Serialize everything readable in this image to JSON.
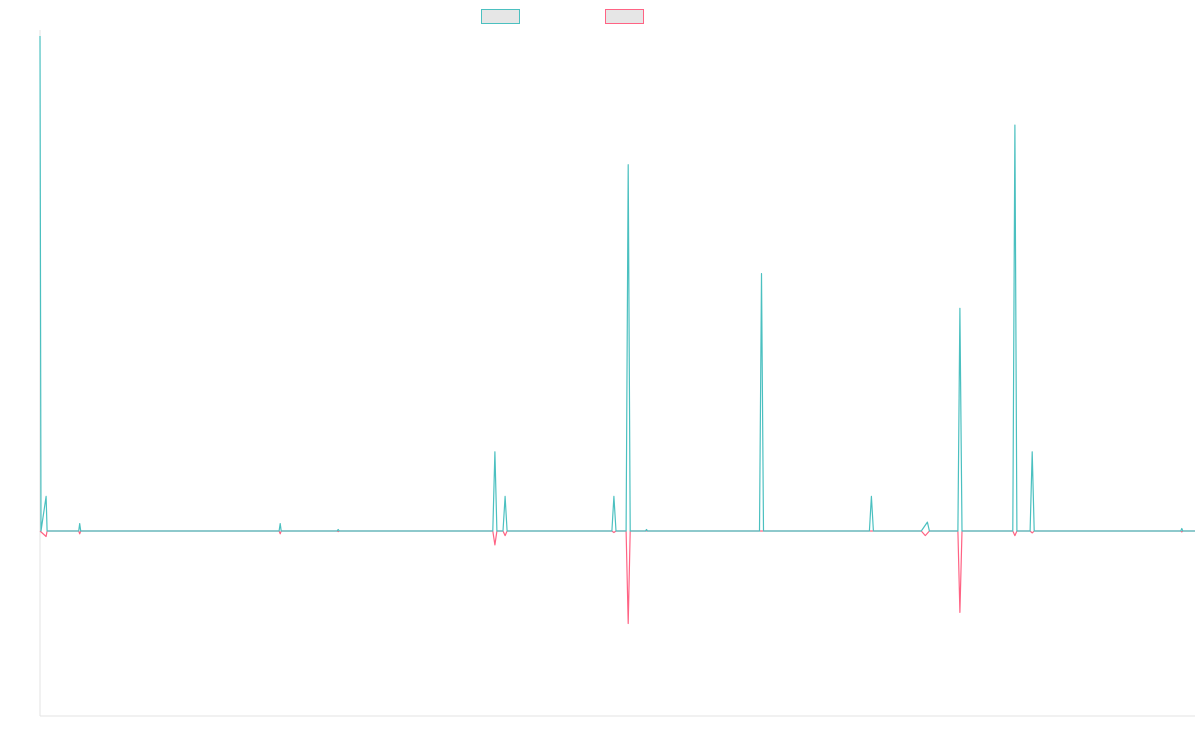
{
  "chart_data": {
    "type": "line",
    "title": "",
    "xlabel": "",
    "ylabel": "",
    "grid": false,
    "legend_position": "top-center",
    "x_range": [
      0,
      1200
    ],
    "y_range": [
      -100,
      100
    ],
    "baseline": 0,
    "series": [
      {
        "name": "",
        "color": "#4bc0c0",
        "swatch_fill": "#e6e6e6",
        "marker": "diamond",
        "points": [
          [
            0,
            100
          ],
          [
            1,
            0
          ],
          [
            6,
            7
          ],
          [
            7,
            0
          ],
          [
            38,
            0
          ],
          [
            39,
            1.5
          ],
          [
            40,
            0
          ],
          [
            235,
            0
          ],
          [
            236,
            1.5
          ],
          [
            237,
            0
          ],
          [
            292,
            0
          ],
          [
            293,
            0.3
          ],
          [
            294,
            0
          ],
          [
            445,
            0
          ],
          [
            447,
            16
          ],
          [
            449,
            0
          ],
          [
            455,
            0
          ],
          [
            457,
            7
          ],
          [
            459,
            0
          ],
          [
            562,
            0
          ],
          [
            564,
            7
          ],
          [
            566,
            0
          ],
          [
            576,
            0
          ],
          [
            578,
            74
          ],
          [
            580,
            0
          ],
          [
            595,
            0
          ],
          [
            596,
            0.3
          ],
          [
            597,
            0
          ],
          [
            707,
            0
          ],
          [
            709,
            52
          ],
          [
            711,
            0
          ],
          [
            815,
            0
          ],
          [
            817,
            7
          ],
          [
            819,
            0
          ],
          [
            866,
            0
          ],
          [
            872,
            1.8
          ],
          [
            874,
            0
          ],
          [
            902,
            0
          ],
          [
            904,
            45
          ],
          [
            906,
            0
          ],
          [
            956,
            0
          ],
          [
            958,
            82
          ],
          [
            960,
            0
          ],
          [
            973,
            0
          ],
          [
            975,
            16
          ],
          [
            977,
            0
          ],
          [
            1121,
            0
          ],
          [
            1122,
            0.5
          ],
          [
            1123,
            0
          ],
          [
            1135,
            0
          ]
        ]
      },
      {
        "name": "",
        "color": "#ff6384",
        "swatch_fill": "#e6e6e6",
        "marker": "diamond",
        "points": [
          [
            0,
            0
          ],
          [
            6,
            -3
          ],
          [
            7,
            0
          ],
          [
            38,
            0
          ],
          [
            39,
            -1.5
          ],
          [
            40,
            0
          ],
          [
            235,
            0
          ],
          [
            236,
            -1.5
          ],
          [
            237,
            0
          ],
          [
            292,
            0
          ],
          [
            293,
            -0.3
          ],
          [
            294,
            0
          ],
          [
            445,
            0
          ],
          [
            447,
            -7.5
          ],
          [
            449,
            0
          ],
          [
            455,
            0
          ],
          [
            457,
            -2.5
          ],
          [
            459,
            0
          ],
          [
            562,
            0
          ],
          [
            564,
            -0.8
          ],
          [
            566,
            0
          ],
          [
            576,
            0
          ],
          [
            578,
            -50
          ],
          [
            580,
            0
          ],
          [
            866,
            0
          ],
          [
            870,
            -2.5
          ],
          [
            874,
            0
          ],
          [
            902,
            0
          ],
          [
            904,
            -44
          ],
          [
            906,
            0
          ],
          [
            956,
            0
          ],
          [
            958,
            -2.5
          ],
          [
            960,
            0
          ],
          [
            973,
            0
          ],
          [
            975,
            -1
          ],
          [
            977,
            0
          ],
          [
            1121,
            0
          ],
          [
            1122,
            -0.5
          ],
          [
            1123,
            0
          ],
          [
            1135,
            0
          ]
        ]
      }
    ]
  }
}
